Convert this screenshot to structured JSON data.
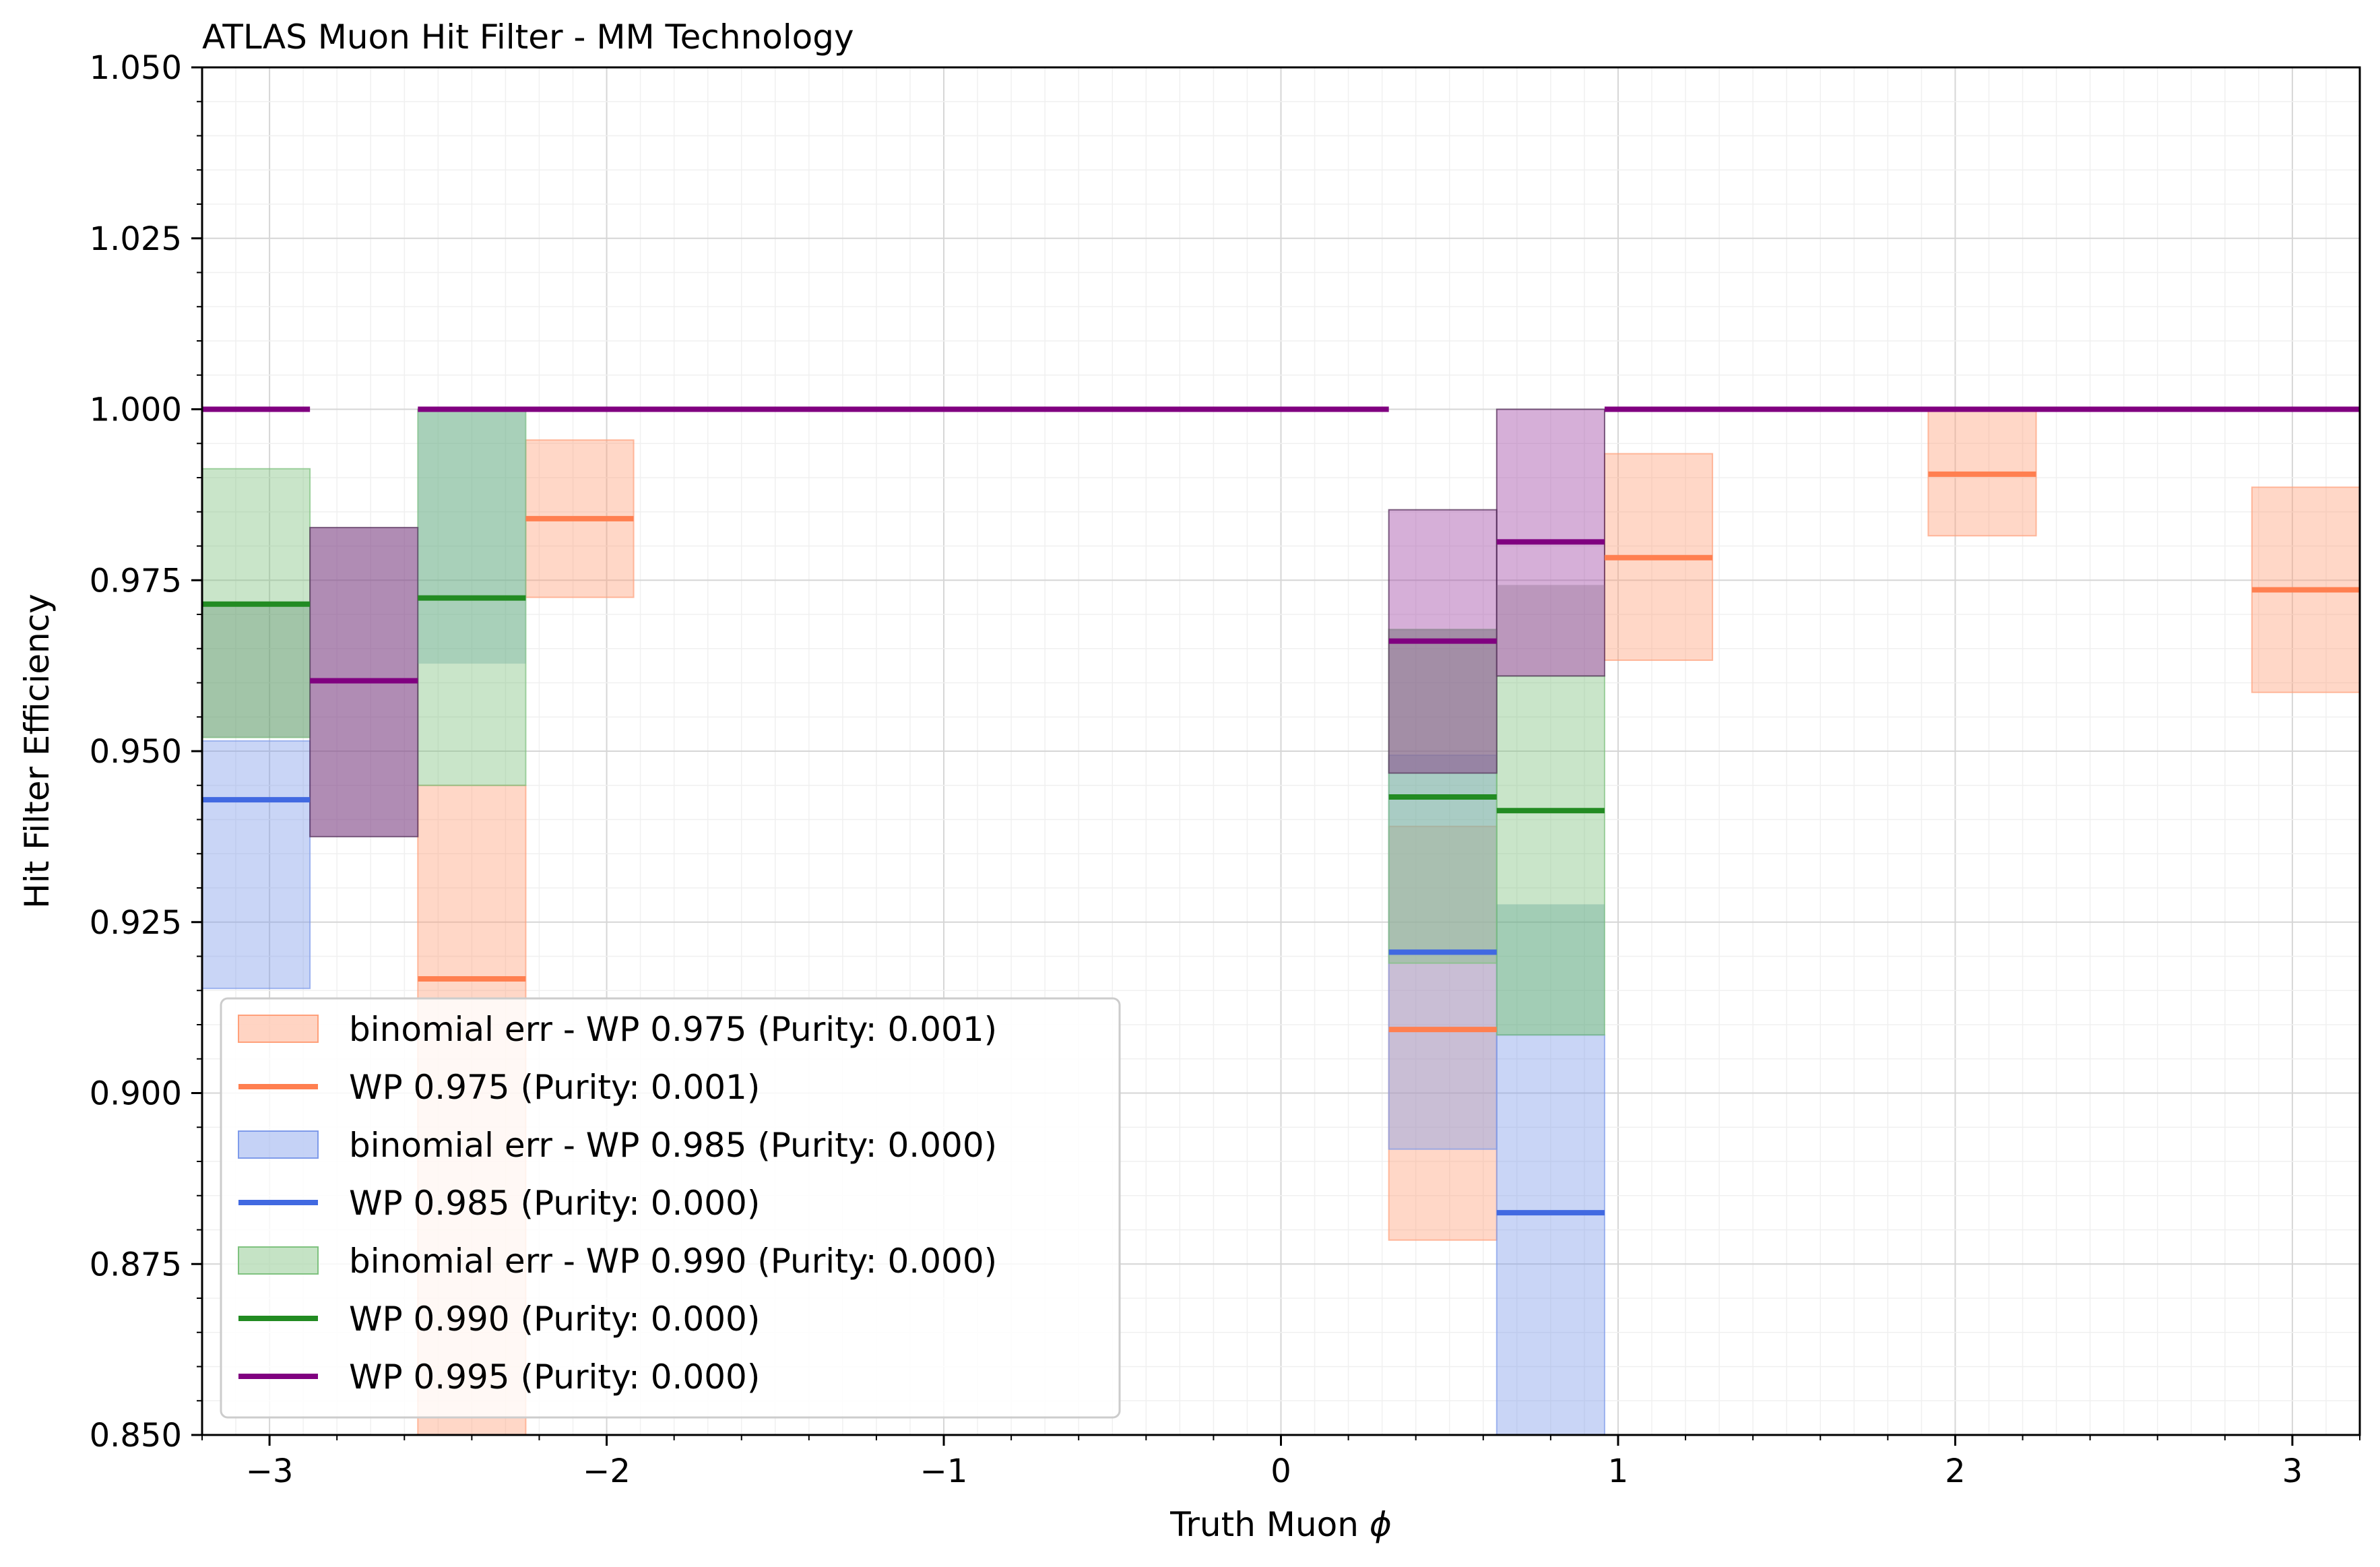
{
  "chart_data": {
    "type": "bar",
    "title": "ATLAS Muon Hit Filter - MM Technology",
    "xlabel": "Truth Muon",
    "xlabel_symbol": "ϕ",
    "ylabel": "Hit Filter Efficiency",
    "xlim": [
      -3.2,
      3.2
    ],
    "ylim": [
      0.85,
      1.05
    ],
    "x_ticks": [
      -3,
      -2,
      -1,
      0,
      1,
      2,
      3
    ],
    "x_tick_labels": [
      "−3",
      "−2",
      "−1",
      "0",
      "1",
      "2",
      "3"
    ],
    "y_ticks": [
      0.85,
      0.875,
      0.9,
      0.925,
      0.95,
      0.975,
      1.0,
      1.025,
      1.05
    ],
    "y_tick_labels": [
      "0.850",
      "0.875",
      "0.900",
      "0.925",
      "0.950",
      "0.975",
      "1.000",
      "1.025",
      "1.050"
    ],
    "grid": true,
    "legend_position": "lower-left",
    "bin_edges": [
      -3.2,
      -2.88,
      -2.56,
      -2.24,
      -1.92,
      0.32,
      0.64,
      0.96,
      1.28,
      1.92,
      2.24,
      2.88,
      3.2
    ],
    "series": [
      {
        "name": "WP 0.975 (Purity: 0.001)",
        "band_name": "binomial err - WP 0.975 (Purity: 0.001)",
        "color": "#ff7f50",
        "band_color": "#ffa07a",
        "bins": [
          {
            "x0": -2.56,
            "x1": -2.24,
            "y": 0.9167,
            "lo": 0.85,
            "hi": 0.945
          },
          {
            "x0": -2.24,
            "x1": -1.92,
            "y": 0.984,
            "lo": 0.9725,
            "hi": 0.9955
          },
          {
            "x0": 0.32,
            "x1": 0.64,
            "y": 0.9093,
            "lo": 0.8785,
            "hi": 0.939
          },
          {
            "x0": 0.96,
            "x1": 1.28,
            "y": 0.9783,
            "lo": 0.9633,
            "hi": 0.9935
          },
          {
            "x0": 1.92,
            "x1": 2.24,
            "y": 0.9905,
            "lo": 0.9815,
            "hi": 1.0
          },
          {
            "x0": 2.88,
            "x1": 3.2,
            "y": 0.9736,
            "lo": 0.9586,
            "hi": 0.9886
          }
        ]
      },
      {
        "name": "WP 0.985 (Purity: 0.000)",
        "band_name": "binomial err - WP 0.985 (Purity: 0.000)",
        "color": "#4169e1",
        "band_color": "#7f9bea",
        "bins": [
          {
            "x0": -3.2,
            "x1": -2.88,
            "y": 0.9429,
            "lo": 0.9153,
            "hi": 0.9515
          },
          {
            "x0": 0.32,
            "x1": 0.64,
            "y": 0.9206,
            "lo": 0.8918,
            "hi": 0.9494
          },
          {
            "x0": 0.64,
            "x1": 0.96,
            "y": 0.8825,
            "lo": 0.85,
            "hi": 0.9085
          }
        ]
      },
      {
        "name": "WP 0.990 (Purity: 0.000)",
        "band_name": "binomial err - WP 0.990 (Purity: 0.000)",
        "color": "#228b22",
        "band_color": "#7fc27f",
        "bins": [
          {
            "x0": -3.2,
            "x1": -2.88,
            "y": 0.9715,
            "lo": 0.952,
            "hi": 0.9913
          },
          {
            "x0": -2.56,
            "x1": -2.24,
            "y": 0.9724,
            "lo": 0.945,
            "hi": 1.0
          },
          {
            "x0": 0.32,
            "x1": 0.64,
            "y": 0.9433,
            "lo": 0.919,
            "hi": 0.9678
          },
          {
            "x0": 0.64,
            "x1": 0.96,
            "y": 0.9413,
            "lo": 0.9085,
            "hi": 0.961
          }
        ]
      },
      {
        "name": "WP 0.995 (Purity: 0.000)",
        "band_name": "binomial err - WP 0.995 (Purity: 0.000)",
        "color": "#800080",
        "band_color": "#4a2350",
        "bins": [
          {
            "x0": -3.2,
            "x1": -2.88,
            "y": 1.0,
            "lo": null,
            "hi": null
          },
          {
            "x0": -2.88,
            "x1": -2.56,
            "y": 0.9603,
            "lo": 0.9375,
            "hi": 0.9827
          },
          {
            "x0": -2.56,
            "x1": 0.32,
            "y": 1.0,
            "lo": null,
            "hi": null
          },
          {
            "x0": 0.32,
            "x1": 0.64,
            "y": 0.9661,
            "lo": 0.9468,
            "hi": 0.9853
          },
          {
            "x0": 0.64,
            "x1": 0.96,
            "y": 0.9806,
            "lo": 0.961,
            "hi": 1.0
          },
          {
            "x0": 0.96,
            "x1": 3.2,
            "y": 1.0,
            "lo": null,
            "hi": null
          }
        ]
      }
    ],
    "extra_bands": [
      {
        "x0": -3.2,
        "x1": -2.88,
        "lo": 0.952,
        "hi": 0.9713,
        "color": "#5a8a6a"
      },
      {
        "x0": -2.88,
        "x1": -2.56,
        "lo": 0.9375,
        "hi": 0.9827,
        "color": "#6b4a73"
      },
      {
        "x0": -2.56,
        "x1": -2.24,
        "lo": 0.9628,
        "hi": 1.0,
        "color": "#6aa89a"
      },
      {
        "x0": 0.32,
        "x1": 0.64,
        "lo": 0.9468,
        "hi": 0.9678,
        "color": "#7a6a80"
      },
      {
        "x0": 0.64,
        "x1": 0.96,
        "lo": 0.961,
        "hi": 0.9743,
        "color": "#8a6a8a"
      },
      {
        "x0": 0.64,
        "x1": 0.96,
        "lo": 0.9085,
        "hi": 0.9276,
        "color": "#5aa090"
      }
    ],
    "legend": [
      {
        "kind": "band",
        "label": "binomial err - WP 0.975 (Purity: 0.001)",
        "color": "#ffa07a"
      },
      {
        "kind": "line",
        "label": "WP 0.975 (Purity: 0.001)",
        "color": "#ff7f50"
      },
      {
        "kind": "band",
        "label": "binomial err - WP 0.985 (Purity: 0.000)",
        "color": "#7f9bea"
      },
      {
        "kind": "line",
        "label": "WP 0.985 (Purity: 0.000)",
        "color": "#4169e1"
      },
      {
        "kind": "band",
        "label": "binomial err - WP 0.990 (Purity: 0.000)",
        "color": "#7fc27f"
      },
      {
        "kind": "line",
        "label": "WP 0.990 (Purity: 0.000)",
        "color": "#228b22"
      },
      {
        "kind": "line",
        "label": "WP 0.995 (Purity: 0.000)",
        "color": "#800080"
      }
    ]
  }
}
